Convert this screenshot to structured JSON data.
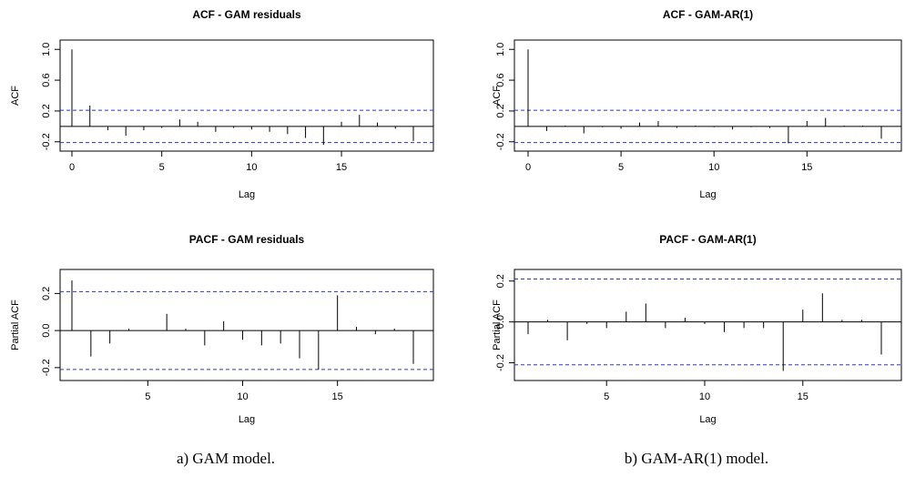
{
  "captions": [
    "a) GAM model.",
    "b) GAM-AR(1) model."
  ],
  "chart_data": [
    {
      "type": "bar",
      "title": "ACF - GAM residuals",
      "xlabel": "Lag",
      "ylabel": "ACF",
      "xlim": [
        0,
        19
      ],
      "ylim": [
        -0.25,
        1.05
      ],
      "xticks": [
        0,
        5,
        10,
        15
      ],
      "yticks": [
        1.0,
        0.6,
        0.2,
        -0.2
      ],
      "ytick_labels": [
        "1.0",
        "0.6",
        "0.2",
        "-0.2"
      ],
      "conf_limit": 0.21,
      "lags": [
        0,
        1,
        2,
        3,
        4,
        5,
        6,
        7,
        8,
        9,
        10,
        11,
        12,
        13,
        14,
        15,
        16,
        17,
        18,
        19
      ],
      "values": [
        1.0,
        0.27,
        -0.05,
        -0.12,
        -0.05,
        -0.02,
        0.09,
        0.06,
        -0.07,
        -0.02,
        -0.04,
        -0.07,
        -0.1,
        -0.15,
        -0.24,
        0.06,
        0.15,
        0.05,
        -0.03,
        -0.19
      ],
      "colors": {
        "bars": "#000000",
        "conf": "#3333cc"
      }
    },
    {
      "type": "bar",
      "title": "ACF - GAM-AR(1)",
      "xlabel": "Lag",
      "ylabel": "ACF",
      "xlim": [
        0,
        19
      ],
      "ylim": [
        -0.25,
        1.05
      ],
      "xticks": [
        0,
        5,
        10,
        15
      ],
      "yticks": [
        1.0,
        0.6,
        0.2,
        -0.2
      ],
      "ytick_labels": [
        "1.0",
        "0.6",
        "0.2",
        "-0.2"
      ],
      "conf_limit": 0.21,
      "lags": [
        0,
        1,
        2,
        3,
        4,
        5,
        6,
        7,
        8,
        9,
        10,
        11,
        12,
        13,
        14,
        15,
        16,
        17,
        18,
        19
      ],
      "values": [
        1.0,
        -0.06,
        0.01,
        -0.09,
        -0.01,
        -0.03,
        0.05,
        0.07,
        -0.02,
        0.01,
        -0.01,
        -0.04,
        -0.01,
        -0.02,
        -0.22,
        0.07,
        0.11,
        0.01,
        0.01,
        -0.16
      ],
      "colors": {
        "bars": "#000000",
        "conf": "#3333cc"
      }
    },
    {
      "type": "bar",
      "title": "PACF - GAM residuals",
      "xlabel": "Lag",
      "ylabel": "Partial ACF",
      "xlim": [
        0.5,
        19.5
      ],
      "ylim": [
        -0.24,
        0.3
      ],
      "xticks": [
        5,
        10,
        15
      ],
      "yticks": [
        0.2,
        0.0,
        -0.2
      ],
      "ytick_labels": [
        "0.2",
        "0.0",
        "-0.2"
      ],
      "conf_limit": 0.21,
      "lags": [
        1,
        2,
        3,
        4,
        5,
        6,
        7,
        8,
        9,
        10,
        11,
        12,
        13,
        14,
        15,
        16,
        17,
        18,
        19
      ],
      "values": [
        0.27,
        -0.14,
        -0.07,
        0.01,
        0.0,
        0.09,
        0.01,
        -0.08,
        0.05,
        -0.05,
        -0.08,
        -0.07,
        -0.15,
        -0.21,
        0.19,
        0.02,
        -0.02,
        0.01,
        -0.18
      ],
      "colors": {
        "bars": "#000000",
        "conf": "#3333cc"
      }
    },
    {
      "type": "bar",
      "title": "PACF - GAM-AR(1)",
      "xlabel": "Lag",
      "ylabel": "Partial ACF",
      "xlim": [
        0.5,
        19.5
      ],
      "ylim": [
        -0.26,
        0.23
      ],
      "xticks": [
        5,
        10,
        15
      ],
      "yticks": [
        0.2,
        0.0,
        -0.2
      ],
      "ytick_labels": [
        "0.2",
        "0.0",
        "-0.2"
      ],
      "conf_limit": 0.21,
      "lags": [
        1,
        2,
        3,
        4,
        5,
        6,
        7,
        8,
        9,
        10,
        11,
        12,
        13,
        14,
        15,
        16,
        17,
        18,
        19
      ],
      "values": [
        -0.06,
        0.01,
        -0.09,
        -0.01,
        -0.03,
        0.05,
        0.09,
        -0.03,
        0.02,
        -0.01,
        -0.05,
        -0.03,
        -0.03,
        -0.24,
        0.06,
        0.14,
        0.01,
        0.01,
        -0.16
      ],
      "colors": {
        "bars": "#000000",
        "conf": "#3333cc"
      }
    }
  ]
}
